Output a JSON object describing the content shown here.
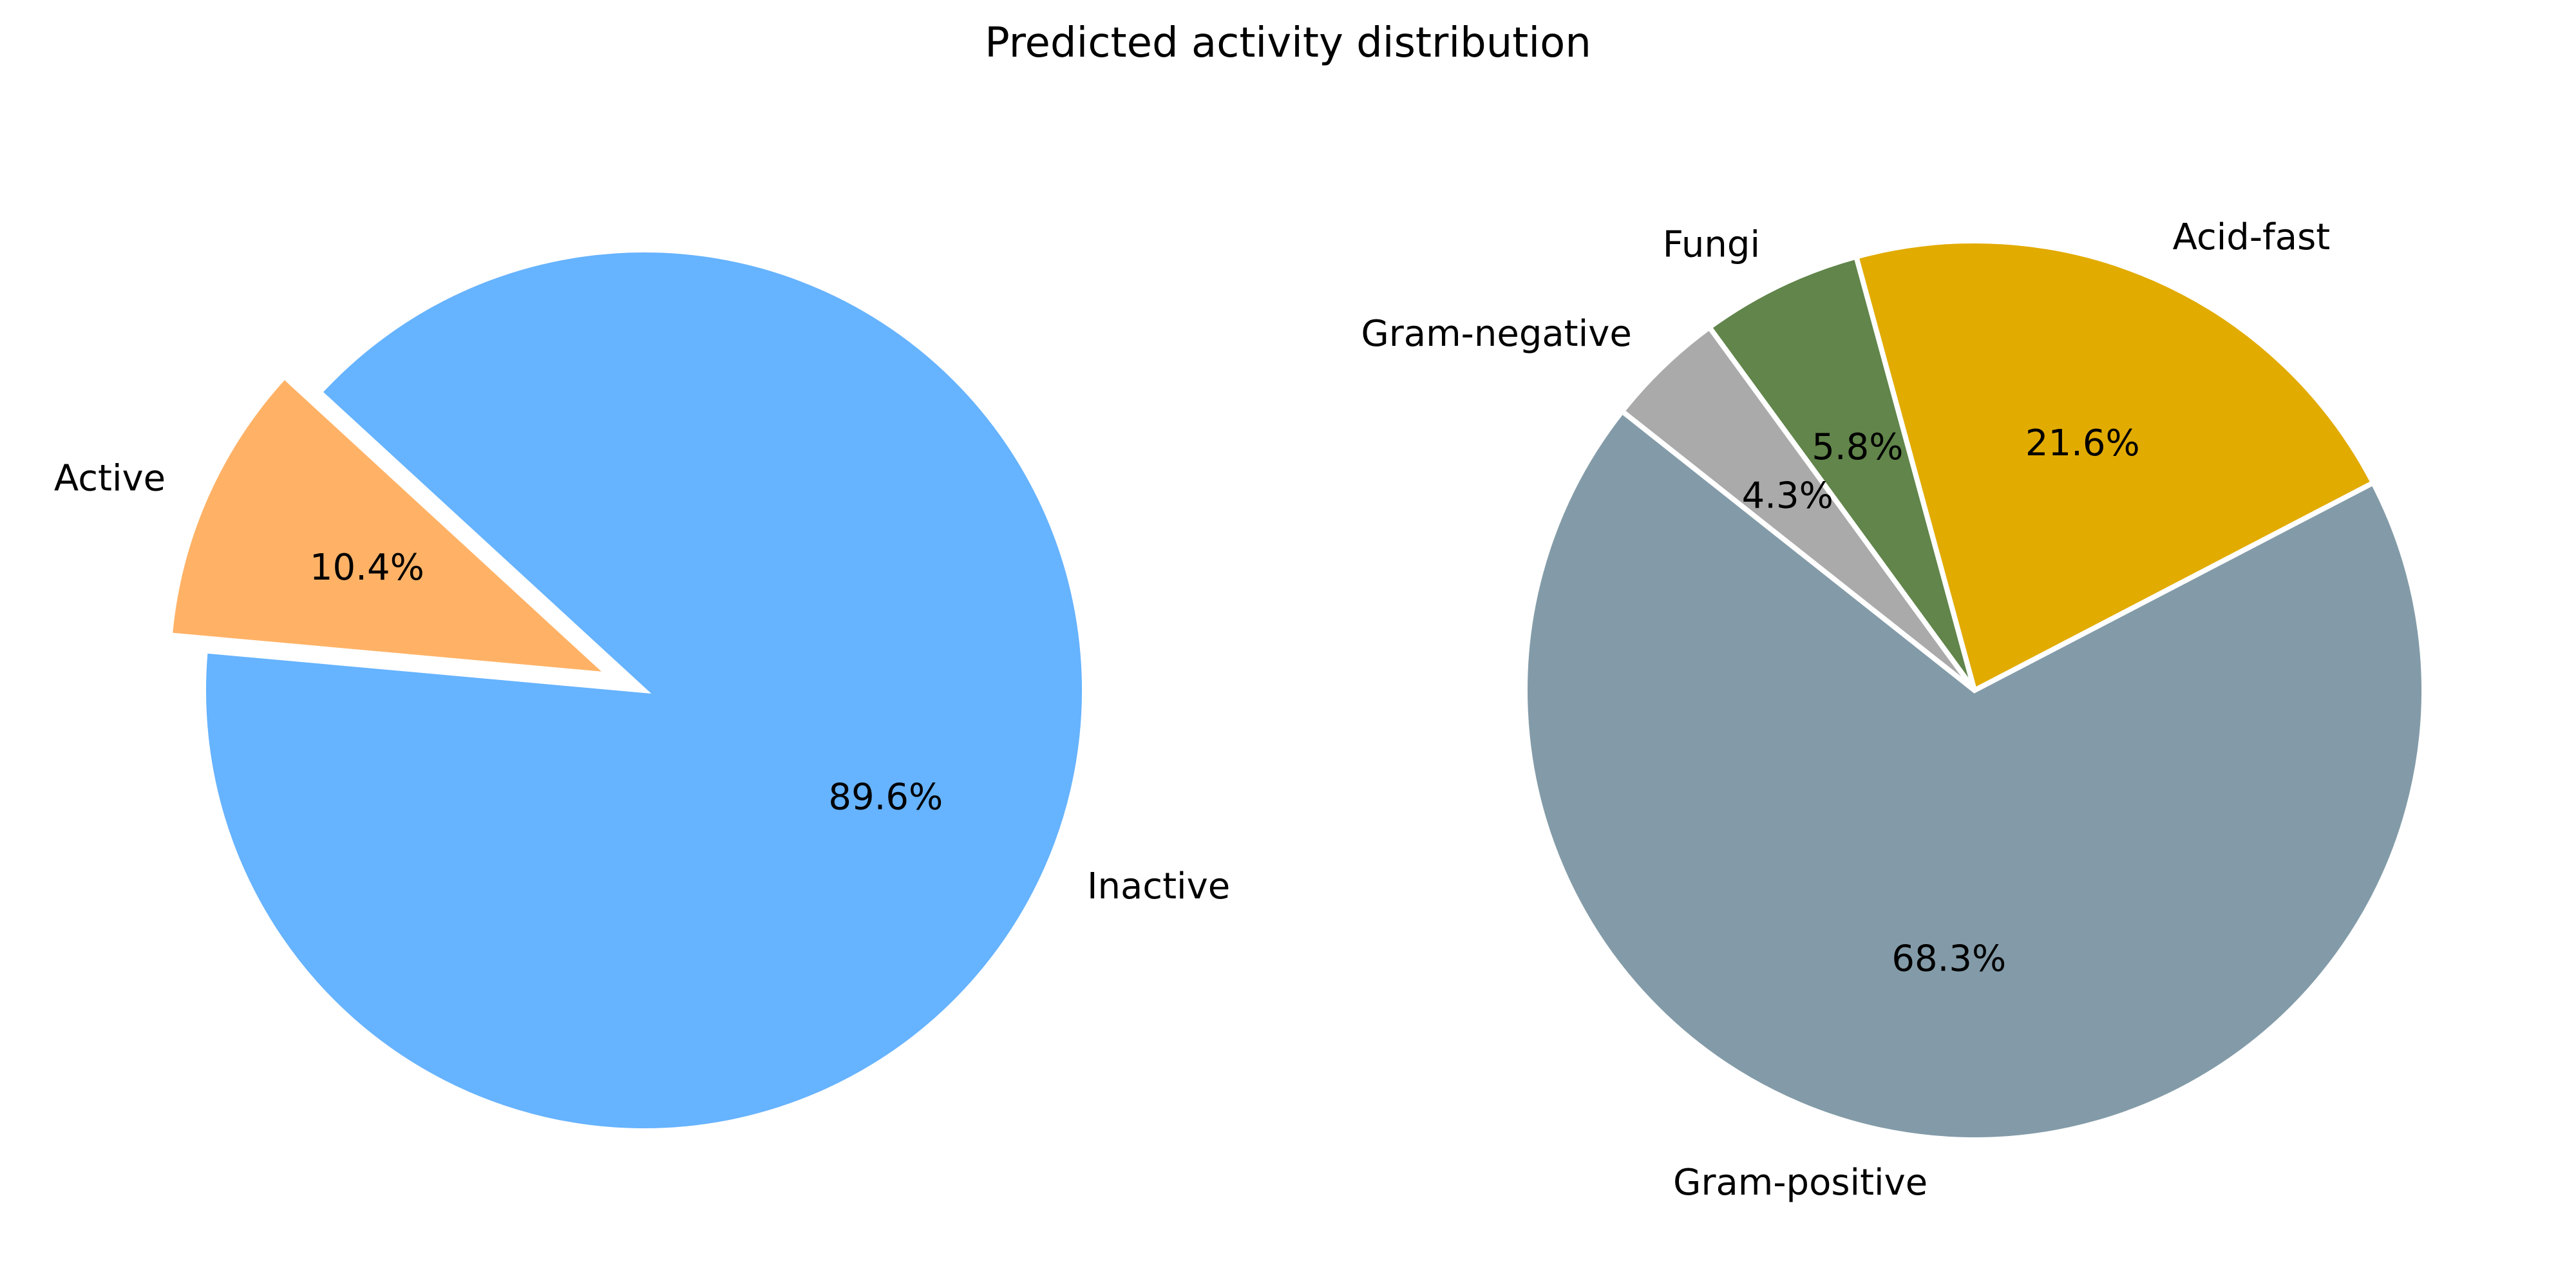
{
  "figure": {
    "title": "Predicted activity distribution"
  },
  "chart_data": [
    {
      "type": "pie",
      "labels": [
        "Active",
        "Inactive"
      ],
      "values": [
        10.4,
        89.6
      ],
      "percent_labels": [
        "10.4%",
        "89.6%"
      ],
      "colors": [
        "#ffb266",
        "#66b3ff"
      ],
      "exploded": [
        "Active"
      ],
      "edge_color": "#ffffff",
      "start": "Active wedge begins near 9 o'clock, drawn counterclockwise"
    },
    {
      "type": "pie",
      "labels": [
        "Acid-fast",
        "Fungi",
        "Gram-negative",
        "Gram-positive"
      ],
      "values": [
        21.6,
        5.8,
        4.3,
        68.3
      ],
      "percent_labels": [
        "21.6%",
        "5.8%",
        "4.3%",
        "68.3%"
      ],
      "colors": [
        "#e2ab00",
        "#61854a",
        "#aaaaaa",
        "#839ba8"
      ],
      "exploded": [],
      "edge_color": "#ffffff"
    }
  ]
}
